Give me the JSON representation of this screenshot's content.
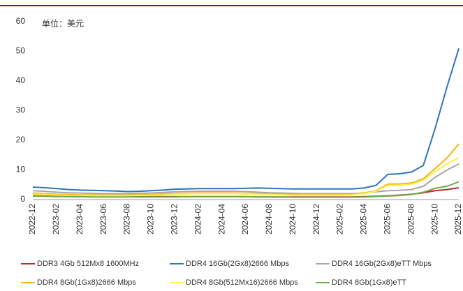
{
  "chart_data": {
    "type": "line",
    "annotation": "单位：美元",
    "categories": [
      "2022-12",
      null,
      "2023-02",
      null,
      "2023-04",
      null,
      "2023-06",
      null,
      "2023-08",
      null,
      "2023-10",
      null,
      "2023-12",
      null,
      "2024-02",
      null,
      "2024-04",
      null,
      "2024-06",
      null,
      "2024-08",
      null,
      "2024-10",
      null,
      "2024-12",
      null,
      "2025-02",
      null,
      "2025-04",
      null,
      "2025-06",
      null,
      "2025-08",
      null,
      "2025-10",
      null,
      "2025-12"
    ],
    "series": [
      {
        "name": "DDR3 4Gb 512Mx8 1600MHz",
        "color": "#c0282d",
        "values": [
          1.3,
          1.2,
          1.1,
          1.0,
          1.0,
          1.0,
          1.0,
          1.0,
          1.0,
          1.0,
          1.0,
          1.0,
          1.0,
          1.0,
          1.0,
          1.0,
          1.0,
          1.0,
          1.0,
          0.9,
          0.9,
          0.9,
          0.9,
          0.9,
          0.9,
          0.9,
          0.9,
          0.9,
          1.0,
          1.1,
          1.3,
          1.5,
          1.8,
          2.3,
          3.0,
          3.4,
          4.0
        ]
      },
      {
        "name": "DDR4 16Gb(2Gx8)2666 Mbps",
        "color": "#2e75b6",
        "values": [
          4.2,
          4.0,
          3.7,
          3.4,
          3.2,
          3.1,
          3.0,
          2.9,
          2.7,
          2.8,
          3.0,
          3.2,
          3.5,
          3.6,
          3.7,
          3.7,
          3.7,
          3.7,
          3.8,
          3.9,
          3.8,
          3.7,
          3.6,
          3.6,
          3.6,
          3.6,
          3.6,
          3.6,
          3.9,
          4.8,
          8.5,
          8.7,
          9.3,
          11.5,
          24,
          38,
          51
        ]
      },
      {
        "name": "DDR4 16Gb(2Gx8)eTT Mbps",
        "color": "#a6a6a6",
        "values": [
          3.0,
          2.8,
          2.5,
          2.3,
          2.2,
          2.1,
          2.0,
          2.0,
          2.0,
          2.1,
          2.2,
          2.4,
          2.6,
          2.7,
          2.8,
          2.8,
          2.8,
          2.8,
          2.7,
          2.5,
          2.3,
          2.2,
          2.1,
          2.0,
          2.0,
          2.0,
          2.0,
          2.0,
          2.2,
          2.6,
          3.0,
          3.1,
          3.4,
          4.5,
          7.5,
          10,
          12
        ]
      },
      {
        "name": "DDR4 8Gb(1Gx8)2666 Mbps",
        "color": "#f5b21a",
        "values": [
          2.2,
          2.0,
          1.8,
          1.7,
          1.6,
          1.6,
          1.5,
          1.5,
          1.5,
          1.6,
          1.7,
          1.9,
          2.0,
          2.1,
          2.2,
          2.2,
          2.2,
          2.2,
          2.1,
          2.0,
          1.9,
          1.8,
          1.7,
          1.7,
          1.7,
          1.7,
          1.7,
          1.8,
          2.2,
          3.0,
          5.2,
          5.3,
          5.6,
          7,
          10.5,
          14,
          18.8
        ]
      },
      {
        "name": "DDR4 8Gb(512Mx16)2666 Mbps",
        "color": "#fff04a",
        "values": [
          1.8,
          1.7,
          1.5,
          1.4,
          1.4,
          1.3,
          1.3,
          1.3,
          1.3,
          1.4,
          1.5,
          1.6,
          1.8,
          1.9,
          2.0,
          2.0,
          2.0,
          2.0,
          1.9,
          1.8,
          1.7,
          1.6,
          1.5,
          1.5,
          1.5,
          1.5,
          1.5,
          1.6,
          2.0,
          2.8,
          4.8,
          4.9,
          5.2,
          6.5,
          9.5,
          12,
          14.2
        ]
      },
      {
        "name": "DDR4 8Gb(1Gx8)eTT",
        "color": "#70ad47",
        "values": [
          1.2,
          1.1,
          1.0,
          1.0,
          1.0,
          0.9,
          0.9,
          0.9,
          0.9,
          0.9,
          0.9,
          0.9,
          0.9,
          1.0,
          1.0,
          1.0,
          1.0,
          1.0,
          1.0,
          0.9,
          0.9,
          0.9,
          0.8,
          0.8,
          0.8,
          0.8,
          0.8,
          0.8,
          0.9,
          1.0,
          1.2,
          1.4,
          1.7,
          2.5,
          3.8,
          4.5,
          6.0
        ]
      }
    ],
    "ylim": [
      0,
      60
    ],
    "yticks": [
      0,
      10,
      20,
      30,
      40,
      50,
      60
    ],
    "grid": false,
    "legend": "bottom"
  }
}
